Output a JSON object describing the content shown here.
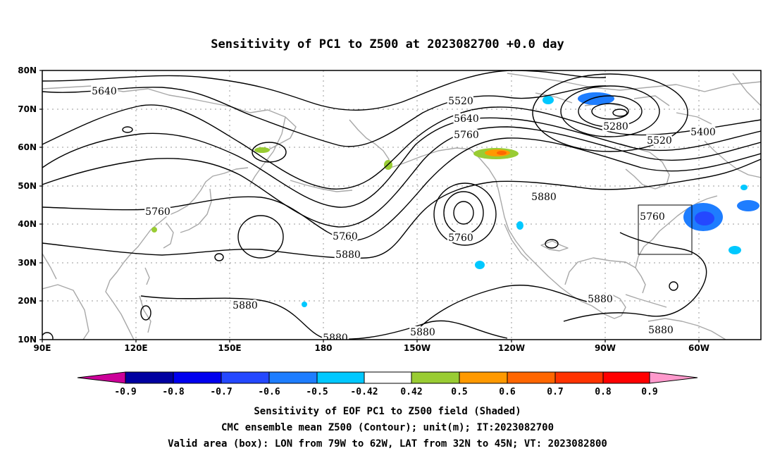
{
  "title": "Sensitivity of PC1 to Z500 at 2023082700 +0.0 day",
  "lat_labels": [
    "80N",
    "70N",
    "60N",
    "50N",
    "40N",
    "30N",
    "20N",
    "10N"
  ],
  "lon_labels": [
    "90E",
    "120E",
    "150E",
    "180",
    "150W",
    "120W",
    "90W",
    "60W"
  ],
  "contour_labels": [
    "5640",
    "5520",
    "5640",
    "5760",
    "5280",
    "5400",
    "5520",
    "5760",
    "5760",
    "5880",
    "5760",
    "5880",
    "5760",
    "5880",
    "5880",
    "5880",
    "5880",
    "5880"
  ],
  "colorbar": {
    "labels": [
      "-0.9",
      "-0.8",
      "-0.7",
      "-0.6",
      "-0.5",
      "-0.42",
      "0.42",
      "0.5",
      "0.6",
      "0.7",
      "0.8",
      "0.9"
    ],
    "colors": [
      "#cc0099",
      "#0000a0",
      "#0000ee",
      "#2448ff",
      "#1e7dff",
      "#00c8ff",
      "#ffffff",
      "#99cc33",
      "#ff9900",
      "#ff6600",
      "#ff3300",
      "#ff0000",
      "#ff99cc"
    ]
  },
  "shading": {
    "negative_colors": [
      "#1e7dff",
      "#2448ff",
      "#00c8ff"
    ],
    "positive_colors": [
      "#99cc33",
      "#ff9900",
      "#ff6600"
    ]
  },
  "captions": [
    "Sensitivity of EOF PC1 to Z500 field (Shaded)",
    "CMC ensemble mean Z500 (Contour); unit(m); IT:2023082700",
    "Valid area (box): LON from 79W to 62W, LAT from 32N to 45N; VT: 2023082800"
  ]
}
